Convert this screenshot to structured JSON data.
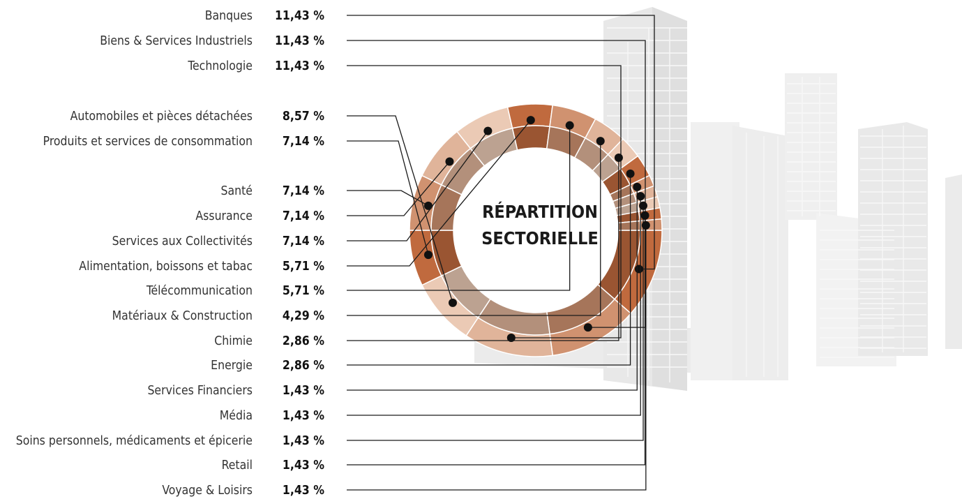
{
  "chart_data": {
    "type": "pie",
    "style": "donut",
    "title": [
      "RÉPARTITION",
      "SECTORIELLE"
    ],
    "legend": "left",
    "series": [
      {
        "label": "Banques",
        "value": 11.43,
        "display": "11,43 %",
        "color": "#c06a3e"
      },
      {
        "label": "Biens & Services Industriels",
        "value": 11.43,
        "display": "11,43 %",
        "color": "#d09270"
      },
      {
        "label": "Technologie",
        "value": 11.43,
        "display": "11,43 %",
        "color": "#e0b49a"
      },
      {
        "label": "Automobiles et pièces détachées",
        "value": 8.57,
        "display": "8,57 %",
        "color": "#ebcab5"
      },
      {
        "label": "Produits et services de consommation",
        "value": 7.14,
        "display": "7,14 %",
        "color": "#c06a3e"
      },
      {
        "label": "Santé",
        "value": 7.14,
        "display": "7,14 %",
        "color": "#d09270"
      },
      {
        "label": "Assurance",
        "value": 7.14,
        "display": "7,14 %",
        "color": "#e0b49a"
      },
      {
        "label": "Services aux Collectivités",
        "value": 7.14,
        "display": "7,14 %",
        "color": "#ebcab5"
      },
      {
        "label": "Alimentation, boissons et tabac",
        "value": 5.71,
        "display": "5,71 %",
        "color": "#c06a3e"
      },
      {
        "label": "Télécommunication",
        "value": 5.71,
        "display": "5,71 %",
        "color": "#d09270"
      },
      {
        "label": "Matériaux & Construction",
        "value": 4.29,
        "display": "4,29 %",
        "color": "#e0b49a"
      },
      {
        "label": "Chimie",
        "value": 2.86,
        "display": "2,86 %",
        "color": "#ebcab5"
      },
      {
        "label": "Energie",
        "value": 2.86,
        "display": "2,86 %",
        "color": "#c06a3e"
      },
      {
        "label": "Services Financiers",
        "value": 1.43,
        "display": "1,43 %",
        "color": "#d09270"
      },
      {
        "label": "Média",
        "value": 1.43,
        "display": "1,43 %",
        "color": "#e0b49a"
      },
      {
        "label": "Soins personnels, médicaments et épicerie",
        "value": 1.43,
        "display": "1,43 %",
        "color": "#ebcab5"
      },
      {
        "label": "Retail",
        "value": 1.43,
        "display": "1,43 %",
        "color": "#c06a3e"
      },
      {
        "label": "Voyage & Loisirs",
        "value": 1.43,
        "display": "1,43 %",
        "color": "#d09270"
      }
    ]
  },
  "colors": {
    "label_text": "#333333",
    "value_text": "#111111",
    "leader_line": "#1a1a1a",
    "background_buildings": "#ebebeb"
  }
}
